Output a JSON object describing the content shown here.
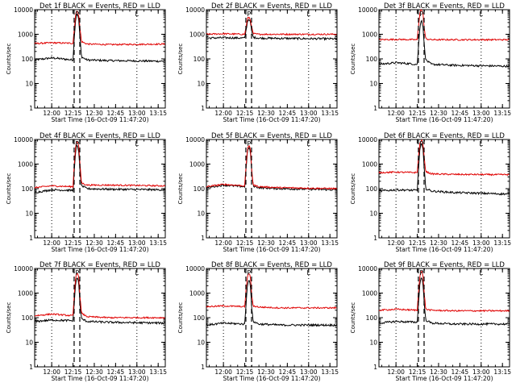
{
  "figure": {
    "background": "#ffffff"
  },
  "colors": {
    "events": "#000000",
    "lld": "#e00000",
    "axis": "#000000"
  },
  "shared": {
    "ylabel": "Counts/sec",
    "xlabel": "Start Time (16-Oct-09 11:47:20)",
    "ylim": [
      1,
      10000
    ],
    "yticks": [
      1,
      10,
      100,
      1000,
      10000
    ],
    "ytick_labels": [
      "1",
      "10",
      "100",
      "1000",
      "10000"
    ],
    "xlim_min": [
      -12,
      80
    ],
    "xticks_min": [
      0,
      15,
      30,
      45,
      60,
      75
    ],
    "xtick_labels": [
      "12:00",
      "12:15",
      "12:30",
      "12:45",
      "13:00",
      "13:15"
    ],
    "vlines_dotted_min": [
      0,
      60
    ],
    "vlines_dashed_min": [
      15.8,
      19.8
    ]
  },
  "chart_data": [
    {
      "type": "line",
      "title": "Det 1f BLACK = Events, RED = LLD",
      "markers": [
        "P",
        "L"
      ],
      "series": [
        {
          "name": "Events",
          "x": [
            -12,
            0,
            15,
            16,
            17,
            18,
            19,
            20,
            21,
            25,
            40,
            80
          ],
          "values": [
            90,
            110,
            90,
            900,
            5000,
            7000,
            4000,
            600,
            120,
            90,
            85,
            80
          ]
        },
        {
          "name": "LLD",
          "x": [
            -12,
            0,
            15,
            16,
            17,
            18,
            19,
            20,
            21,
            25,
            40,
            80
          ],
          "values": [
            420,
            450,
            430,
            1800,
            7500,
            8500,
            6000,
            1500,
            500,
            400,
            380,
            400
          ]
        }
      ]
    },
    {
      "type": "line",
      "title": "Det 2f BLACK = Events, RED = LLD",
      "markers": [
        "P",
        "L"
      ],
      "series": [
        {
          "name": "Events",
          "x": [
            -12,
            0,
            15,
            16,
            17,
            18,
            19,
            20,
            21,
            25,
            40,
            80
          ],
          "values": [
            700,
            720,
            700,
            1500,
            3500,
            4200,
            3000,
            1200,
            750,
            700,
            680,
            650
          ]
        },
        {
          "name": "LLD",
          "x": [
            -12,
            0,
            15,
            16,
            17,
            18,
            19,
            20,
            21,
            25,
            40,
            80
          ],
          "values": [
            1000,
            1050,
            1000,
            2000,
            4500,
            5000,
            3800,
            1800,
            1050,
            1000,
            1000,
            1000
          ]
        }
      ]
    },
    {
      "type": "line",
      "title": "Det 3f BLACK = Events, RED = LLD",
      "markers": [
        "P",
        "L"
      ],
      "series": [
        {
          "name": "Events",
          "x": [
            -12,
            0,
            15,
            16,
            17,
            18,
            19,
            20,
            21,
            25,
            40,
            80
          ],
          "values": [
            60,
            70,
            60,
            400,
            2500,
            4000,
            2000,
            300,
            90,
            60,
            55,
            50
          ]
        },
        {
          "name": "LLD",
          "x": [
            -12,
            0,
            15,
            16,
            17,
            18,
            19,
            20,
            21,
            25,
            40,
            80
          ],
          "values": [
            600,
            620,
            600,
            2500,
            9000,
            10000,
            7000,
            1500,
            650,
            600,
            600,
            600
          ]
        }
      ]
    },
    {
      "type": "line",
      "title": "Det 4f BLACK = Events, RED = LLD",
      "markers": [
        "P",
        "L"
      ],
      "series": [
        {
          "name": "Events",
          "x": [
            -12,
            0,
            15,
            16,
            17,
            18,
            19,
            20,
            21,
            25,
            40,
            80
          ],
          "values": [
            70,
            90,
            85,
            600,
            4000,
            6000,
            3500,
            400,
            130,
            100,
            95,
            90
          ]
        },
        {
          "name": "LLD",
          "x": [
            -12,
            0,
            15,
            16,
            17,
            18,
            19,
            20,
            21,
            25,
            40,
            80
          ],
          "values": [
            110,
            130,
            120,
            1200,
            6500,
            8500,
            5500,
            800,
            170,
            140,
            140,
            130
          ]
        }
      ]
    },
    {
      "type": "line",
      "title": "Det 5f BLACK = Events, RED = LLD",
      "markers": [
        "P",
        "L"
      ],
      "series": [
        {
          "name": "Events",
          "x": [
            -12,
            0,
            15,
            16,
            17,
            18,
            19,
            20,
            21,
            25,
            40,
            80
          ],
          "values": [
            110,
            140,
            120,
            700,
            3500,
            5000,
            3000,
            400,
            130,
            110,
            100,
            90
          ]
        },
        {
          "name": "LLD",
          "x": [
            -12,
            0,
            15,
            16,
            17,
            18,
            19,
            20,
            21,
            25,
            40,
            80
          ],
          "values": [
            120,
            150,
            130,
            900,
            4500,
            6000,
            3800,
            500,
            140,
            120,
            110,
            100
          ]
        }
      ]
    },
    {
      "type": "line",
      "title": "Det 6f BLACK = Events, RED = LLD",
      "markers": [
        "P",
        "L"
      ],
      "series": [
        {
          "name": "Events",
          "x": [
            -12,
            0,
            15,
            16,
            17,
            18,
            19,
            20,
            21,
            25,
            40,
            80
          ],
          "values": [
            80,
            90,
            85,
            800,
            5000,
            7000,
            4000,
            500,
            100,
            80,
            70,
            60
          ]
        },
        {
          "name": "LLD",
          "x": [
            -12,
            0,
            15,
            16,
            17,
            18,
            19,
            20,
            21,
            25,
            40,
            80
          ],
          "values": [
            450,
            470,
            450,
            2500,
            8000,
            9500,
            6500,
            1500,
            500,
            400,
            380,
            370
          ]
        }
      ]
    },
    {
      "type": "line",
      "title": "Det 7f BLACK = Events, RED = LLD",
      "markers": [
        "P",
        "L"
      ],
      "series": [
        {
          "name": "Events",
          "x": [
            -12,
            0,
            15,
            16,
            17,
            18,
            19,
            20,
            21,
            25,
            40,
            80
          ],
          "values": [
            70,
            80,
            75,
            500,
            3000,
            4500,
            2500,
            300,
            90,
            70,
            65,
            60
          ]
        },
        {
          "name": "LLD",
          "x": [
            -12,
            0,
            15,
            16,
            17,
            18,
            19,
            20,
            21,
            25,
            40,
            80
          ],
          "values": [
            120,
            140,
            120,
            1000,
            5000,
            7000,
            4500,
            600,
            150,
            110,
            100,
            100
          ]
        }
      ]
    },
    {
      "type": "line",
      "title": "Det 8f BLACK = Events, RED = LLD",
      "markers": [
        "P",
        "L"
      ],
      "series": [
        {
          "name": "Events",
          "x": [
            -12,
            0,
            15,
            16,
            17,
            18,
            19,
            20,
            21,
            25,
            40,
            80
          ],
          "values": [
            50,
            60,
            55,
            400,
            2500,
            3800,
            2000,
            200,
            70,
            55,
            50,
            50
          ]
        },
        {
          "name": "LLD",
          "x": [
            -12,
            0,
            15,
            16,
            17,
            18,
            19,
            20,
            21,
            25,
            40,
            80
          ],
          "values": [
            280,
            300,
            280,
            1500,
            5000,
            6500,
            4500,
            700,
            300,
            270,
            250,
            250
          ]
        }
      ]
    },
    {
      "type": "line",
      "title": "Det 9f BLACK = Events, RED = LLD",
      "markers": [
        "P",
        "L"
      ],
      "series": [
        {
          "name": "Events",
          "x": [
            -12,
            0,
            15,
            16,
            17,
            18,
            19,
            20,
            21,
            25,
            40,
            80
          ],
          "values": [
            60,
            70,
            65,
            500,
            3000,
            4500,
            2500,
            300,
            80,
            60,
            55,
            55
          ]
        },
        {
          "name": "LLD",
          "x": [
            -12,
            0,
            15,
            16,
            17,
            18,
            19,
            20,
            21,
            25,
            40,
            80
          ],
          "values": [
            200,
            220,
            200,
            1500,
            6000,
            8000,
            5000,
            800,
            220,
            200,
            190,
            190
          ]
        }
      ]
    }
  ]
}
